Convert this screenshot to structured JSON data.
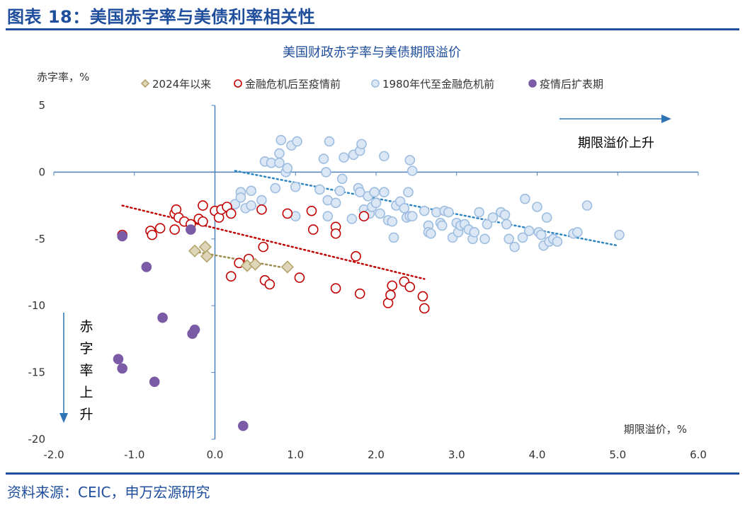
{
  "header": {
    "title": "图表 18：美国赤字率与美债利率相关性"
  },
  "footer": {
    "source": "资料来源：CEIC，申万宏源研究"
  },
  "colors": {
    "brand": "#1f4e9c",
    "axis": "#4f81bd",
    "tick_text": "#333333",
    "series_2024": "#b5a56e",
    "series_2024_fill": "#ddd6b8",
    "series_gfc_covid": "#c00000",
    "series_1980": "#9dbde0",
    "series_1980_fill": "#dbe7f5",
    "series_post_covid": "#7b5aa6",
    "trend_1980": "#2e86c1",
    "trend_gfc": "#c00000",
    "trend_2024": "#9c8d4f"
  },
  "chart_data": {
    "type": "scatter",
    "title": "美国财政赤字率与美债期限溢价",
    "xlabel": "期限溢价，%",
    "ylabel": "赤字率，%",
    "xlim": [
      -2.0,
      6.0
    ],
    "ylim": [
      -20,
      5
    ],
    "x_ticks": [
      "-2.0",
      "-1.0",
      "0.0",
      "1.0",
      "2.0",
      "3.0",
      "4.0",
      "5.0",
      "6.0"
    ],
    "y_ticks": [
      "5",
      "0",
      "-5",
      "-10",
      "-15",
      "-20"
    ],
    "legend_position": "top",
    "annotations": {
      "right_arrow_label": "期限溢价上升",
      "down_arrow_label": [
        "赤",
        "字",
        "率",
        "上",
        "升"
      ]
    },
    "series": [
      {
        "name": "2024年以来",
        "marker": "diamond",
        "points": [
          [
            -0.25,
            -5.9
          ],
          [
            -0.12,
            -5.6
          ],
          [
            -0.1,
            -6.3
          ],
          [
            0.4,
            -7.0
          ],
          [
            0.5,
            -6.9
          ],
          [
            0.9,
            -7.1
          ]
        ],
        "trend": [
          [
            -0.2,
            -6.0
          ],
          [
            0.9,
            -7.2
          ]
        ]
      },
      {
        "name": "金融危机后至疫情前",
        "marker": "circle",
        "points": [
          [
            -1.15,
            -4.7
          ],
          [
            -0.8,
            -4.4
          ],
          [
            -0.78,
            -4.7
          ],
          [
            -0.68,
            -4.2
          ],
          [
            -0.5,
            -4.3
          ],
          [
            -0.5,
            -3.1
          ],
          [
            -0.48,
            -2.8
          ],
          [
            -0.45,
            -3.4
          ],
          [
            -0.38,
            -3.7
          ],
          [
            -0.3,
            -3.9
          ],
          [
            -0.2,
            -3.5
          ],
          [
            -0.15,
            -3.7
          ],
          [
            -0.15,
            -2.5
          ],
          [
            0.0,
            -2.9
          ],
          [
            0.05,
            -3.4
          ],
          [
            0.08,
            -2.8
          ],
          [
            0.15,
            -2.6
          ],
          [
            0.2,
            -3.1
          ],
          [
            0.2,
            -7.8
          ],
          [
            0.3,
            -6.8
          ],
          [
            0.42,
            -6.5
          ],
          [
            0.58,
            -2.8
          ],
          [
            0.6,
            -5.6
          ],
          [
            0.62,
            -8.1
          ],
          [
            0.68,
            -8.4
          ],
          [
            0.9,
            -3.1
          ],
          [
            1.05,
            -7.9
          ],
          [
            1.2,
            -2.9
          ],
          [
            1.22,
            -4.3
          ],
          [
            1.5,
            -4.1
          ],
          [
            1.5,
            -4.6
          ],
          [
            1.5,
            -8.7
          ],
          [
            1.8,
            -9.1
          ],
          [
            1.75,
            -6.3
          ],
          [
            1.85,
            -3.3
          ],
          [
            2.15,
            -9.8
          ],
          [
            2.18,
            -9.2
          ],
          [
            2.2,
            -8.5
          ],
          [
            2.35,
            -8.2
          ],
          [
            2.42,
            -8.6
          ],
          [
            2.58,
            -9.3
          ],
          [
            2.6,
            -10.2
          ]
        ],
        "trend": [
          [
            -1.15,
            -2.5
          ],
          [
            2.6,
            -8.0
          ]
        ]
      },
      {
        "name": "1980年代至金融危机前",
        "marker": "circle",
        "points": [
          [
            0.25,
            -2.4
          ],
          [
            0.32,
            -1.5
          ],
          [
            0.32,
            -1.9
          ],
          [
            0.38,
            -2.7
          ],
          [
            0.45,
            -1.4
          ],
          [
            0.45,
            -2.5
          ],
          [
            0.58,
            -2.1
          ],
          [
            0.62,
            0.8
          ],
          [
            0.7,
            0.7
          ],
          [
            0.75,
            -1.2
          ],
          [
            0.8,
            1.4
          ],
          [
            0.8,
            0.7
          ],
          [
            0.82,
            2.4
          ],
          [
            0.88,
            0.0
          ],
          [
            0.9,
            0.3
          ],
          [
            0.95,
            2.0
          ],
          [
            1.0,
            -1.1
          ],
          [
            1.0,
            -3.3
          ],
          [
            1.02,
            2.3
          ],
          [
            1.3,
            -1.3
          ],
          [
            1.35,
            1.0
          ],
          [
            1.38,
            0.0
          ],
          [
            1.4,
            -2.1
          ],
          [
            1.4,
            -3.3
          ],
          [
            1.42,
            2.3
          ],
          [
            1.5,
            -2.3
          ],
          [
            1.55,
            -1.4
          ],
          [
            1.58,
            -0.5
          ],
          [
            1.6,
            1.1
          ],
          [
            1.7,
            -3.5
          ],
          [
            1.72,
            1.3
          ],
          [
            1.78,
            -1.2
          ],
          [
            1.8,
            -1.5
          ],
          [
            1.8,
            1.6
          ],
          [
            1.82,
            2.1
          ],
          [
            1.85,
            -2.8
          ],
          [
            1.9,
            -1.8
          ],
          [
            1.92,
            -3.1
          ],
          [
            1.95,
            -2.6
          ],
          [
            1.98,
            -1.5
          ],
          [
            2.0,
            -2.3
          ],
          [
            2.05,
            -3.1
          ],
          [
            2.1,
            -1.5
          ],
          [
            2.1,
            1.2
          ],
          [
            2.15,
            -3.6
          ],
          [
            2.2,
            -3.7
          ],
          [
            2.22,
            -4.9
          ],
          [
            2.25,
            -2.5
          ],
          [
            2.3,
            -2.2
          ],
          [
            2.35,
            -2.7
          ],
          [
            2.38,
            -3.4
          ],
          [
            2.4,
            -1.5
          ],
          [
            2.42,
            -3.3
          ],
          [
            2.42,
            0.9
          ],
          [
            2.45,
            0.1
          ],
          [
            2.45,
            -3.3
          ],
          [
            2.6,
            -2.9
          ],
          [
            2.65,
            -4.0
          ],
          [
            2.65,
            -4.5
          ],
          [
            2.68,
            -4.6
          ],
          [
            2.75,
            -3.0
          ],
          [
            2.8,
            -3.8
          ],
          [
            2.82,
            -4.0
          ],
          [
            2.85,
            -2.9
          ],
          [
            2.9,
            -3.0
          ],
          [
            2.95,
            -4.9
          ],
          [
            3.0,
            -3.8
          ],
          [
            3.02,
            -4.5
          ],
          [
            3.05,
            -4.0
          ],
          [
            3.1,
            -3.9
          ],
          [
            3.15,
            -4.3
          ],
          [
            3.2,
            -5.0
          ],
          [
            3.22,
            -4.5
          ],
          [
            3.28,
            -3.0
          ],
          [
            3.35,
            -5.0
          ],
          [
            3.38,
            -3.9
          ],
          [
            3.45,
            -3.4
          ],
          [
            3.55,
            -3.0
          ],
          [
            3.6,
            -3.2
          ],
          [
            3.62,
            -3.9
          ],
          [
            3.65,
            -5.0
          ],
          [
            3.72,
            -5.6
          ],
          [
            3.82,
            -4.9
          ],
          [
            3.85,
            -2.0
          ],
          [
            3.9,
            -4.4
          ],
          [
            4.0,
            -2.6
          ],
          [
            4.02,
            -4.5
          ],
          [
            4.05,
            -4.7
          ],
          [
            4.08,
            -5.5
          ],
          [
            4.12,
            -3.4
          ],
          [
            4.15,
            -5.2
          ],
          [
            4.2,
            -5.0
          ],
          [
            4.25,
            -5.2
          ],
          [
            4.45,
            -4.6
          ],
          [
            4.5,
            -4.5
          ],
          [
            4.62,
            -2.5
          ],
          [
            5.02,
            -4.7
          ]
        ],
        "trend": [
          [
            0.25,
            0.1
          ],
          [
            5.0,
            -5.5
          ]
        ]
      },
      {
        "name": "疫情后扩表期",
        "marker": "circle-filled",
        "points": [
          [
            -1.15,
            -4.8
          ],
          [
            -0.85,
            -7.1
          ],
          [
            -0.65,
            -10.9
          ],
          [
            -0.3,
            -4.3
          ],
          [
            -0.28,
            -12.1
          ],
          [
            -0.25,
            -11.8
          ],
          [
            -1.2,
            -14.0
          ],
          [
            -1.15,
            -14.7
          ],
          [
            -0.75,
            -15.7
          ],
          [
            0.35,
            -19.0
          ]
        ],
        "trend": null
      }
    ]
  }
}
